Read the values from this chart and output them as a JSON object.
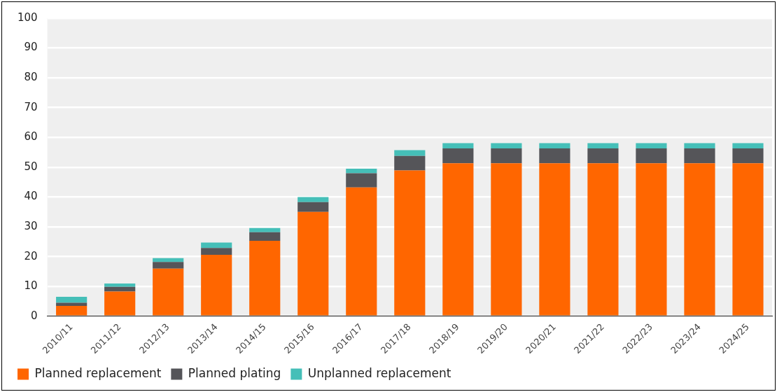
{
  "chart_data": {
    "type": "bar",
    "stacked": true,
    "categories": [
      "2010/11",
      "2011/12",
      "2012/13",
      "2013/14",
      "2014/15",
      "2015/16",
      "2016/17",
      "2017/18",
      "2018/19",
      "2019/20",
      "2020/21",
      "2021/22",
      "2022/23",
      "2023/24",
      "2024/25"
    ],
    "series": [
      {
        "name": "Planned replacement",
        "color": "#ff6600",
        "values": [
          3.5,
          8.3,
          16,
          20.6,
          25.3,
          35,
          43.2,
          48.9,
          51.3,
          51.3,
          51.3,
          51.3,
          51.3,
          51.3,
          51.3
        ]
      },
      {
        "name": "Planned plating",
        "color": "#555559",
        "values": [
          1,
          1.6,
          2.2,
          2.3,
          2.9,
          3.3,
          4.8,
          4.9,
          5,
          5,
          5,
          5,
          5,
          5,
          5
        ]
      },
      {
        "name": "Unplanned replacement",
        "color": "#45bfb8",
        "values": [
          2,
          1.1,
          1.3,
          1.8,
          1.4,
          1.7,
          1.5,
          1.9,
          1.8,
          1.8,
          1.8,
          1.8,
          1.8,
          1.8,
          1.8
        ]
      }
    ],
    "ylim": [
      0,
      100
    ],
    "yticks": [
      0,
      10,
      20,
      30,
      40,
      50,
      60,
      70,
      80,
      90,
      100
    ],
    "grid": "y",
    "legend": "bottom left"
  }
}
